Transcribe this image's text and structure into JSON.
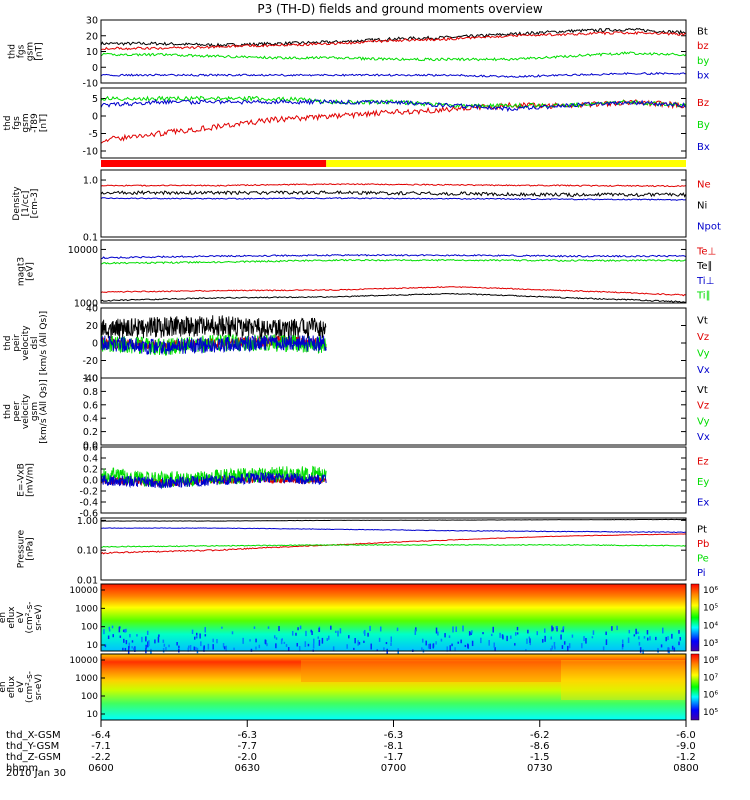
{
  "title": "P3 (TH-D) fields and ground moments overview",
  "date": "2010 Jan 30",
  "colors": {
    "black": "#000000",
    "red": "#e00000",
    "green": "#00dd00",
    "blue": "#0000cc",
    "yellow": "#ffff00",
    "bar_red": "#ff0000"
  },
  "chart_data": [
    {
      "type": "line",
      "ylabel": [
        "thd",
        "fgs",
        "gsm",
        "[nT]"
      ],
      "ylim": [
        -10,
        30
      ],
      "yticks": [
        "30",
        "20",
        "10",
        "0",
        "-10"
      ],
      "series": [
        {
          "name": "Bt",
          "color": "black",
          "x": [
            0,
            0.1,
            0.2,
            0.3,
            0.4,
            0.5,
            0.6,
            0.7,
            0.8,
            0.9,
            1
          ],
          "y": [
            15,
            15,
            14,
            15,
            16,
            18,
            19,
            21,
            23,
            24,
            22
          ],
          "noise": 1
        },
        {
          "name": "bz",
          "color": "red",
          "x": [
            0,
            0.1,
            0.2,
            0.3,
            0.4,
            0.5,
            0.6,
            0.7,
            0.8,
            0.9,
            1
          ],
          "y": [
            12,
            12,
            13,
            14,
            15,
            17,
            18,
            20,
            21,
            22,
            21
          ],
          "noise": 0.8
        },
        {
          "name": "by",
          "color": "green",
          "x": [
            0,
            0.1,
            0.2,
            0.3,
            0.4,
            0.5,
            0.6,
            0.7,
            0.8,
            0.9,
            1
          ],
          "y": [
            8,
            8,
            7,
            6,
            6,
            5,
            5,
            5,
            7,
            9,
            8
          ],
          "noise": 0.8
        },
        {
          "name": "bx",
          "color": "blue",
          "x": [
            0,
            0.1,
            0.2,
            0.3,
            0.4,
            0.5,
            0.6,
            0.7,
            0.8,
            0.9,
            1
          ],
          "y": [
            -5,
            -5,
            -5,
            -5,
            -5,
            -5,
            -5,
            -6,
            -5,
            -4,
            -4
          ],
          "noise": 0.6
        }
      ]
    },
    {
      "type": "line",
      "ylabel": [
        "thd",
        "fgs",
        "gsm",
        "-T89",
        "[nT]"
      ],
      "ylim": [
        -12,
        8
      ],
      "yticks": [
        "5",
        "0",
        "-5",
        "-10"
      ],
      "series": [
        {
          "name": "Bz",
          "color": "red",
          "x": [
            0,
            0.1,
            0.2,
            0.3,
            0.4,
            0.5,
            0.6,
            0.7,
            0.8,
            0.9,
            1
          ],
          "y": [
            -7,
            -5,
            -3,
            -1,
            0,
            1,
            2,
            3,
            3,
            4,
            3
          ],
          "noise": 0.8
        },
        {
          "name": "By",
          "color": "green",
          "x": [
            0,
            0.1,
            0.2,
            0.3,
            0.4,
            0.5,
            0.6,
            0.7,
            0.8,
            0.9,
            1
          ],
          "y": [
            5,
            5,
            5,
            5,
            4,
            4,
            3,
            3,
            3,
            4,
            3
          ],
          "noise": 0.6
        },
        {
          "name": "Bx",
          "color": "blue",
          "x": [
            0,
            0.1,
            0.2,
            0.3,
            0.4,
            0.5,
            0.6,
            0.7,
            0.8,
            0.9,
            1
          ],
          "y": [
            3,
            4,
            4,
            4,
            4,
            4,
            3,
            2,
            3,
            4,
            3
          ],
          "noise": 0.6
        }
      ]
    },
    {
      "type": "line",
      "log": true,
      "ylabel": [
        "Density",
        "[1/cc]",
        "[cm-3]"
      ],
      "ylim": [
        0.1,
        1.5
      ],
      "yticks": [
        "1.0",
        "0.1"
      ],
      "series": [
        {
          "name": "Ne",
          "color": "red",
          "x": [
            0,
            0.2,
            0.4,
            0.6,
            0.8,
            1
          ],
          "y": [
            0.8,
            0.8,
            0.85,
            0.82,
            0.8,
            0.78
          ],
          "noise": 0.02
        },
        {
          "name": "Ni",
          "color": "black",
          "x": [
            0,
            0.2,
            0.4,
            0.6,
            0.8,
            1
          ],
          "y": [
            0.6,
            0.6,
            0.6,
            0.58,
            0.55,
            0.55
          ],
          "noise": 0.04
        },
        {
          "name": "Npot",
          "color": "blue",
          "x": [
            0,
            0.2,
            0.4,
            0.6,
            0.8,
            1
          ],
          "y": [
            0.48,
            0.47,
            0.48,
            0.47,
            0.46,
            0.45
          ],
          "noise": 0.01
        }
      ]
    },
    {
      "type": "line",
      "log": true,
      "ylabel": [
        "magt3",
        "[eV]"
      ],
      "ylim": [
        1000,
        15000
      ],
      "yticks": [
        "10000",
        "1000"
      ],
      "series": [
        {
          "name": "Te⊥",
          "color": "red",
          "x": [
            0,
            0.2,
            0.4,
            0.6,
            0.8,
            1
          ],
          "y": [
            1600,
            1700,
            1750,
            2000,
            1700,
            1400
          ],
          "noise": 40
        },
        {
          "name": "Te∥",
          "color": "black",
          "x": [
            0,
            0.2,
            0.4,
            0.6,
            0.8,
            1
          ],
          "y": [
            1100,
            1250,
            1300,
            1500,
            1250,
            1050
          ],
          "noise": 30
        },
        {
          "name": "Ti⊥",
          "color": "blue",
          "x": [
            0,
            0.2,
            0.4,
            0.6,
            0.8,
            1
          ],
          "y": [
            7000,
            7500,
            7800,
            7800,
            7500,
            7500
          ],
          "noise": 250
        },
        {
          "name": "Ti∥",
          "color": "green",
          "x": [
            0,
            0.2,
            0.4,
            0.6,
            0.8,
            1
          ],
          "y": [
            5500,
            5800,
            6300,
            6300,
            6200,
            6200
          ],
          "noise": 200
        }
      ]
    },
    {
      "type": "line",
      "ylabel": [
        "thd",
        "peir",
        "velocity",
        "dsl",
        "[km/s (All Qs)]"
      ],
      "ylim": [
        -40,
        40
      ],
      "yticks": [
        "40",
        "20",
        "0",
        "-20",
        "-40"
      ],
      "xmax": 0.385,
      "series": [
        {
          "name": "Vt",
          "color": "black",
          "x": [
            0,
            0.1,
            0.2,
            0.3,
            0.385
          ],
          "y": [
            15,
            18,
            20,
            15,
            18
          ],
          "noise": 12
        },
        {
          "name": "Vz",
          "color": "red",
          "x": [
            0,
            0.1,
            0.2,
            0.3,
            0.385
          ],
          "y": [
            0,
            -3,
            0,
            2,
            0
          ],
          "noise": 6
        },
        {
          "name": "Vy",
          "color": "green",
          "x": [
            0,
            0.1,
            0.2,
            0.3,
            0.385
          ],
          "y": [
            0,
            -5,
            0,
            0,
            -2
          ],
          "noise": 10
        },
        {
          "name": "Vx",
          "color": "blue",
          "x": [
            0,
            0.1,
            0.2,
            0.3,
            0.385
          ],
          "y": [
            0,
            -5,
            -2,
            0,
            0
          ],
          "noise": 9
        }
      ]
    },
    {
      "type": "line",
      "ylabel": [
        "thd",
        "peer",
        "velocity",
        "gsm",
        "[km/s (All Qs)]"
      ],
      "ylim": [
        0,
        1
      ],
      "yticks": [
        "1.0",
        "0.8",
        "0.6",
        "0.4",
        "0.2",
        "0.0"
      ],
      "series": [
        {
          "name": "Vt",
          "color": "black",
          "x": [],
          "y": [],
          "noise": 0
        },
        {
          "name": "Vz",
          "color": "red",
          "x": [],
          "y": [],
          "noise": 0
        },
        {
          "name": "Vy",
          "color": "green",
          "x": [],
          "y": [],
          "noise": 0
        },
        {
          "name": "Vx",
          "color": "blue",
          "x": [],
          "y": [],
          "noise": 0
        }
      ]
    },
    {
      "type": "line",
      "ylabel": [
        "E=-VxB",
        "[mV/m]"
      ],
      "ylim": [
        -0.6,
        0.6
      ],
      "yticks": [
        "0.6",
        "0.4",
        "0.2",
        "0.0",
        "-0.2",
        "-0.4",
        "-0.6"
      ],
      "xmax": 0.385,
      "series": [
        {
          "name": "Ez",
          "color": "red",
          "x": [
            0,
            0.1,
            0.2,
            0.3,
            0.385
          ],
          "y": [
            0,
            -0.05,
            0,
            0.02,
            0
          ],
          "noise": 0.07
        },
        {
          "name": "Ey",
          "color": "green",
          "x": [
            0,
            0.1,
            0.2,
            0.3,
            0.385
          ],
          "y": [
            0.1,
            0,
            0.05,
            0.1,
            0.1
          ],
          "noise": 0.15
        },
        {
          "name": "Ex",
          "color": "blue",
          "x": [
            0,
            0.1,
            0.2,
            0.3,
            0.385
          ],
          "y": [
            0,
            -0.05,
            0,
            0.05,
            0
          ],
          "noise": 0.1
        }
      ]
    },
    {
      "type": "line",
      "log": true,
      "ylabel": [
        "Pressure",
        "[nPa]"
      ],
      "ylim": [
        0.01,
        1.2
      ],
      "yticks": [
        "1.00",
        "0.10",
        "0.01"
      ],
      "series": [
        {
          "name": "Pt",
          "color": "black",
          "x": [
            0,
            0.2,
            0.4,
            0.6,
            0.8,
            1
          ],
          "y": [
            0.95,
            0.95,
            1.0,
            1.02,
            1.05,
            1.07
          ],
          "noise": 0.01
        },
        {
          "name": "Pb",
          "color": "red",
          "x": [
            0,
            0.2,
            0.4,
            0.6,
            0.8,
            1
          ],
          "y": [
            0.08,
            0.1,
            0.15,
            0.22,
            0.3,
            0.35
          ],
          "noise": 0.005
        },
        {
          "name": "Pe",
          "color": "green",
          "x": [
            0,
            0.2,
            0.4,
            0.6,
            0.8,
            1
          ],
          "y": [
            0.13,
            0.14,
            0.15,
            0.15,
            0.15,
            0.14
          ],
          "noise": 0.005
        },
        {
          "name": "Pi",
          "color": "blue",
          "x": [
            0,
            0.2,
            0.4,
            0.6,
            0.8,
            1
          ],
          "y": [
            0.55,
            0.55,
            0.5,
            0.45,
            0.42,
            0.4
          ],
          "noise": 0.01
        }
      ]
    },
    {
      "type": "heatmap",
      "ylabel": [
        "thd",
        "peir",
        "en",
        "eflux",
        "eV",
        "(cm²-s-",
        "sr-eV)"
      ],
      "yticks": [
        "10000",
        "1000",
        "100",
        "10"
      ],
      "colorbar_ticks": [
        "10⁶",
        "10⁵",
        "10⁴",
        "10³"
      ]
    },
    {
      "type": "heatmap",
      "ylabel": [
        "thd",
        "peer",
        "en",
        "eflux",
        "eV",
        "(cm²-s-",
        "sr-eV)"
      ],
      "yticks": [
        "10000",
        "1000",
        "100",
        "10"
      ],
      "colorbar_ticks": [
        "10⁸",
        "10⁷",
        "10⁶",
        "10⁵"
      ]
    }
  ],
  "state_bar": {
    "red_until": 0.385
  },
  "x_axis": {
    "rows": [
      {
        "label": "thd_X-GSM",
        "values": [
          "-6.4",
          "-6.3",
          "-6.3",
          "-6.2",
          "-6.0"
        ]
      },
      {
        "label": "thd_Y-GSM",
        "values": [
          "-7.1",
          "-7.7",
          "-8.1",
          "-8.6",
          "-9.0"
        ]
      },
      {
        "label": "thd_Z-GSM",
        "values": [
          "-2.2",
          "-2.0",
          "-1.7",
          "-1.5",
          "-1.2"
        ]
      },
      {
        "label": "hhmm",
        "values": [
          "0600",
          "0630",
          "0700",
          "0730",
          "0800"
        ]
      }
    ]
  }
}
